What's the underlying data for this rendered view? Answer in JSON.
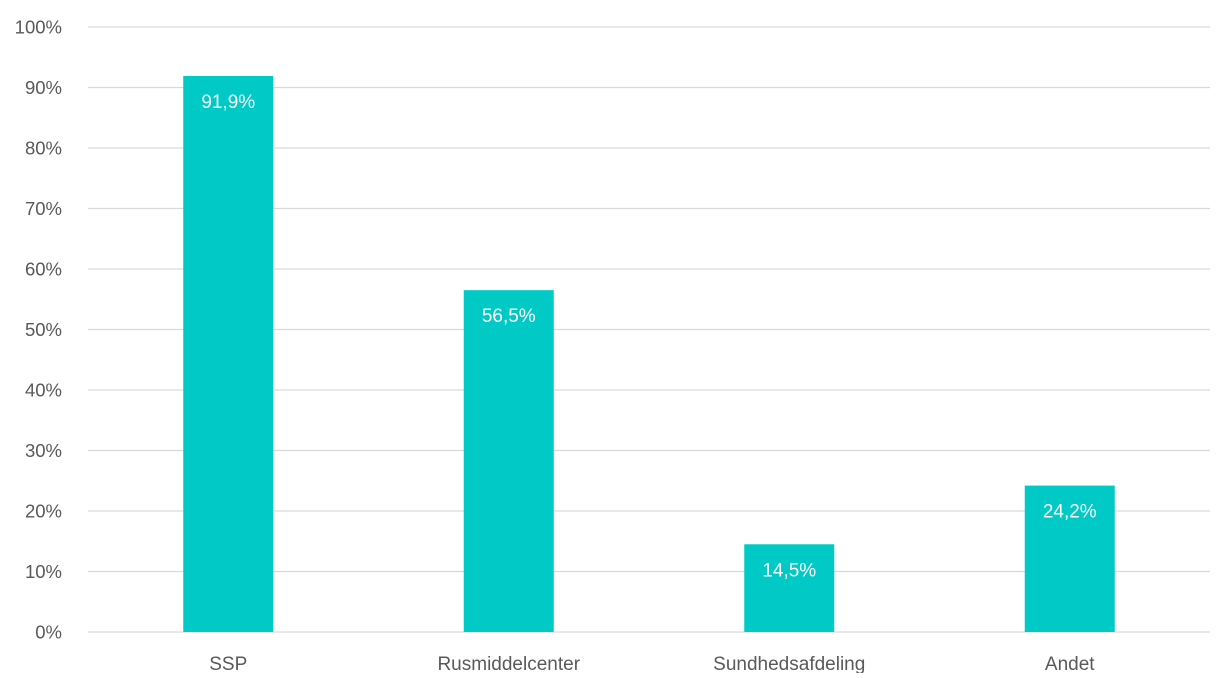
{
  "chart_data": {
    "type": "bar",
    "title": "",
    "xlabel": "",
    "ylabel": "",
    "categories": [
      "SSP",
      "Rusmiddelcenter",
      "Sundhedsafdeling",
      "Andet"
    ],
    "values": [
      91.9,
      56.5,
      14.5,
      24.2
    ],
    "data_labels": [
      "91,9%",
      "56,5%",
      "14,5%",
      "24,2%"
    ],
    "ylim": [
      0,
      100
    ],
    "y_ticks": [
      0,
      10,
      20,
      30,
      40,
      50,
      60,
      70,
      80,
      90,
      100
    ],
    "y_tick_labels": [
      "0%",
      "10%",
      "20%",
      "30%",
      "40%",
      "50%",
      "60%",
      "70%",
      "80%",
      "90%",
      "100%"
    ],
    "grid": true,
    "legend": "none",
    "colors": {
      "bar": "#00C9C6",
      "grid": "#D9D9D9",
      "axis_text": "#595959",
      "data_label": "#FFFFFF"
    }
  }
}
